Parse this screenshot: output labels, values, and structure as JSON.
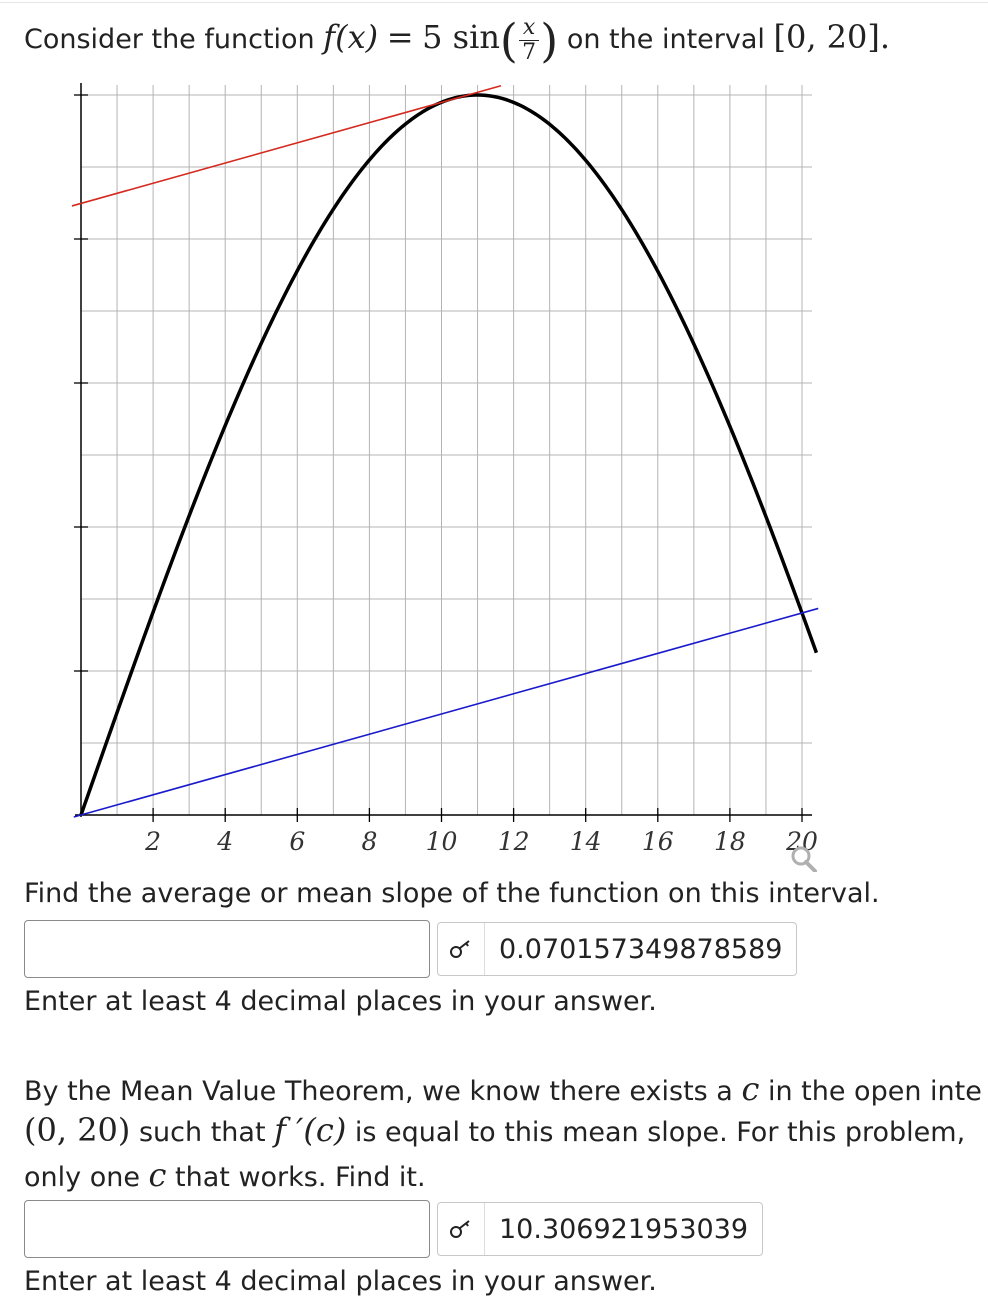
{
  "header": {
    "lead": "Consider the function",
    "fx": "f(x)",
    "eq": "=",
    "coef": "5 sin",
    "frac_num": "x",
    "frac_den": "7",
    "mid": "on the interval",
    "interval": "[0, 20]."
  },
  "graph": {
    "x_ticks": [
      "2",
      "4",
      "6",
      "8",
      "10",
      "12",
      "14",
      "16",
      "18",
      "20"
    ],
    "y_ticks": [
      "1",
      "2",
      "3",
      "4",
      "5"
    ],
    "colors": {
      "curve": "#000000",
      "tangent": "#d42a20",
      "secant": "#1a1acc",
      "grid": "#b4b4b4",
      "axis": "#000000"
    },
    "zoom_icon": "magnifier-icon"
  },
  "chart_data": {
    "type": "line",
    "xlim": [
      0,
      20
    ],
    "ylim": [
      0,
      5
    ],
    "xticks": [
      2,
      4,
      6,
      8,
      10,
      12,
      14,
      16,
      18,
      20
    ],
    "yticks": [
      1,
      2,
      3,
      4,
      5
    ],
    "grid": true,
    "series": [
      {
        "kind": "function",
        "expression": "5 sin(x/7)",
        "x_range": [
          0,
          20.4
        ],
        "color": "#000000"
      },
      {
        "kind": "tangent_line",
        "x": [
          0,
          20
        ],
        "y": [
          4.247,
          5.65
        ],
        "color": "#d42a20"
      },
      {
        "kind": "secant_line",
        "x": [
          0,
          20
        ],
        "y": [
          0,
          1.403
        ],
        "color": "#1a1acc"
      }
    ]
  },
  "q1": {
    "prompt": "Find the average or mean slope of the function on this interval.",
    "input_value": "",
    "answer": "0.070157349878589",
    "note": "Enter at least 4 decimal places in your answer."
  },
  "q2": {
    "line1_a": "By the Mean Value Theorem, we know there exists a",
    "line1_c": "c",
    "line1_b": "in the open inte",
    "line2_interval": "(0, 20)",
    "line2_a": "such that",
    "line2_fc": "f ′(c)",
    "line2_b": "is equal to this mean slope. For this problem,",
    "line3_a": "only one",
    "line3_c": "c",
    "line3_b": "that works. Find it.",
    "input_value": "",
    "answer": "10.306921953039",
    "note": "Enter at least 4 decimal places in your answer."
  }
}
